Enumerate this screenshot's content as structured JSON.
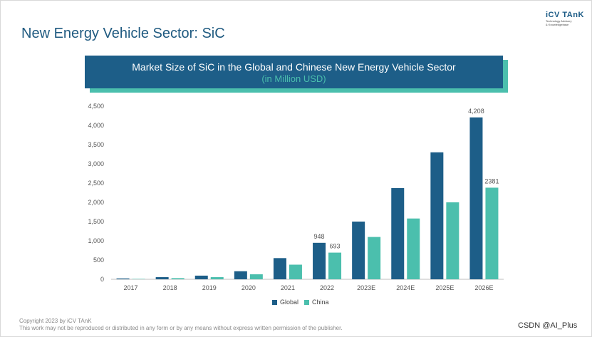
{
  "page": {
    "title": "New Energy Vehicle Sector: SiC",
    "logo": {
      "main": "iCV TAnK",
      "sub_line1": "Technology Advisory",
      "sub_line2": "& Knowledgebase"
    },
    "copyright_line1": "Copyright  2023 by iCV TAnK",
    "copyright_line2": "This work may not be reproduced or distributed in any form or by any means without express written permission of the publisher.",
    "watermark": "CSDN @AI_Plus"
  },
  "colors": {
    "global": "#1d5e88",
    "china": "#4bbfad",
    "banner_bg": "#1d5e88",
    "banner_shadow": "#4bbfad"
  },
  "chart_data": {
    "type": "bar",
    "title": "Market Size of SiC in the Global and Chinese New Energy Vehicle Sector",
    "subtitle": "(in Million USD)",
    "categories": [
      "2017",
      "2018",
      "2019",
      "2020",
      "2021",
      "2022",
      "2023E",
      "2024E",
      "2025E",
      "2026E"
    ],
    "series": [
      {
        "name": "Global",
        "values": [
          22,
          55,
          95,
          210,
          550,
          948,
          1500,
          2370,
          3300,
          4208
        ]
      },
      {
        "name": "China",
        "values": [
          10,
          30,
          55,
          130,
          380,
          693,
          1100,
          1580,
          2000,
          2381
        ]
      }
    ],
    "data_labels": [
      {
        "series": "Global",
        "category": "2022",
        "text": "948"
      },
      {
        "series": "China",
        "category": "2022",
        "text": "693"
      },
      {
        "series": "Global",
        "category": "2026E",
        "text": "4,208"
      },
      {
        "series": "China",
        "category": "2026E",
        "text": "2381"
      }
    ],
    "yticks": [
      0,
      500,
      1000,
      1500,
      2000,
      2500,
      3000,
      3500,
      4000,
      4500
    ],
    "ytick_labels": [
      "0",
      "500",
      "1,000",
      "1,500",
      "2,000",
      "2,500",
      "3,000",
      "3,500",
      "4,000",
      "4,500"
    ],
    "ylim": [
      0,
      4500
    ],
    "xlabel": "",
    "ylabel": "",
    "grid": false,
    "legend": {
      "position": "bottom-center",
      "entries": [
        "Global",
        "China"
      ]
    }
  }
}
